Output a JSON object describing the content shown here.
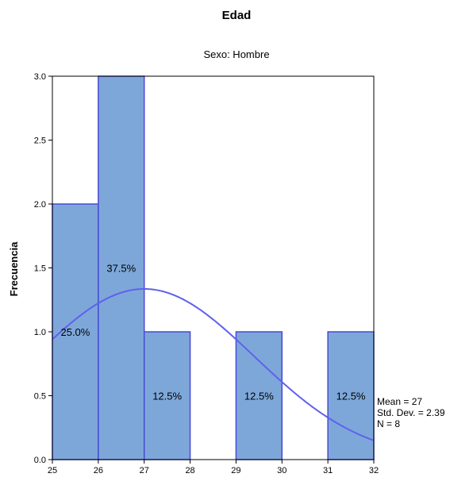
{
  "chart_data": {
    "type": "histogram",
    "title": "Edad",
    "subtitle": "Sexo: Hombre",
    "xlabel": "",
    "ylabel": "Frecuencia",
    "xlim": [
      25,
      32
    ],
    "ylim": [
      0,
      3.0
    ],
    "x_ticks": [
      "25",
      "26",
      "27",
      "28",
      "29",
      "30",
      "31",
      "32"
    ],
    "y_ticks": [
      "0.0",
      "0.5",
      "1.0",
      "1.5",
      "2.0",
      "2.5",
      "3.0"
    ],
    "bins": [
      {
        "start": 25,
        "end": 26,
        "count": 2,
        "label": "25.0%"
      },
      {
        "start": 26,
        "end": 27,
        "count": 3,
        "label": "37.5%"
      },
      {
        "start": 27,
        "end": 28,
        "count": 1,
        "label": "12.5%"
      },
      {
        "start": 28,
        "end": 29,
        "count": 0,
        "label": ""
      },
      {
        "start": 29,
        "end": 30,
        "count": 1,
        "label": "12.5%"
      },
      {
        "start": 30,
        "end": 31,
        "count": 0,
        "label": ""
      },
      {
        "start": 31,
        "end": 32,
        "count": 1,
        "label": "12.5%"
      }
    ],
    "normal_curve": {
      "mean": 27,
      "std_dev": 2.39,
      "n": 8
    },
    "stats": [
      "Mean = 27",
      "Std. Dev. = 2.39",
      "N = 8"
    ],
    "bar_fill": "#7da7d9",
    "bar_stroke": "#4a4ad4",
    "curve_color": "#6060ee",
    "grid": false
  }
}
